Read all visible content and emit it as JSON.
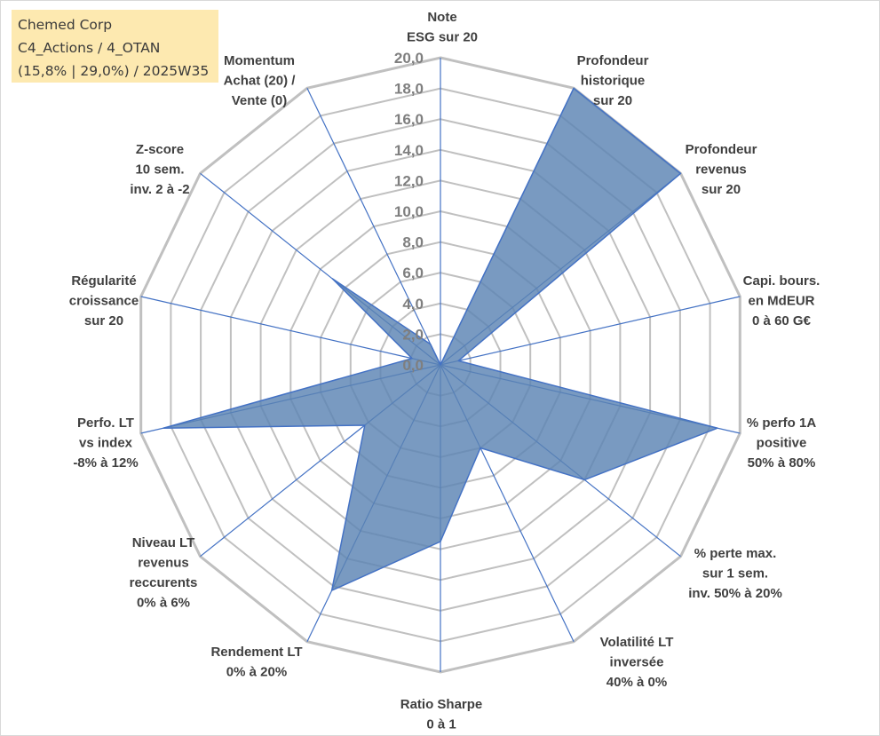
{
  "header": {
    "company": "Chemed Corp",
    "category": "C4_Actions / 4_OTAN",
    "period": "(15,8% | 29,0%) / 2025W35"
  },
  "colors": {
    "grid": "#c0c0c0",
    "spoke": "#4472c4",
    "fill": "#5b84b3",
    "stroke": "#4472c4",
    "info_box": "#fde9b0"
  },
  "chart_data": {
    "type": "radar",
    "rmin": 0,
    "rmax": 20,
    "tick_step": 2,
    "tick_labels": [
      "0,0",
      "2,0",
      "4,0",
      "6,0",
      "8,0",
      "10,0",
      "12,0",
      "14,0",
      "16,0",
      "18,0",
      "20,0"
    ],
    "grid": true,
    "legend": "none",
    "axes": [
      {
        "label": [
          "Note",
          "ESG sur 20"
        ],
        "value": 0
      },
      {
        "label": [
          "Profondeur",
          "historique",
          "sur 20"
        ],
        "value": 20
      },
      {
        "label": [
          "Profondeur",
          "revenus",
          "sur 20"
        ],
        "value": 20
      },
      {
        "label": [
          "Capi. bours.",
          "en MdEUR",
          "0 à 60 G€"
        ],
        "value": 1.2
      },
      {
        "label": [
          "% perfo 1A",
          "positive",
          "50% à 80%"
        ],
        "value": 18.5
      },
      {
        "label": [
          "% perte max.",
          "sur 1 sem.",
          "inv. 50% à 20%"
        ],
        "value": 12
      },
      {
        "label": [
          "Volatilité LT",
          "inversée",
          "40% à 0%"
        ],
        "value": 6
      },
      {
        "label": [
          "Ratio Sharpe",
          "0 à 1"
        ],
        "value": 11.5
      },
      {
        "label": [
          "Rendement LT",
          "0% à 20%"
        ],
        "value": 16.3
      },
      {
        "label": [
          "Niveau LT",
          "revenus",
          "reccurents",
          "0% à 6%"
        ],
        "value": 6.3
      },
      {
        "label": [
          "Perfo. LT",
          "vs index",
          "-8% à 12%"
        ],
        "value": 18.5
      },
      {
        "label": [
          "Régularité",
          "croissance",
          "sur 20"
        ],
        "value": 1.9
      },
      {
        "label": [
          "Z-score",
          "10 sem.",
          "inv. 2 à -2"
        ],
        "value": 9
      },
      {
        "label": [
          "Momentum",
          "Achat (20) /",
          "Vente (0)"
        ],
        "value": 1.5
      }
    ]
  }
}
